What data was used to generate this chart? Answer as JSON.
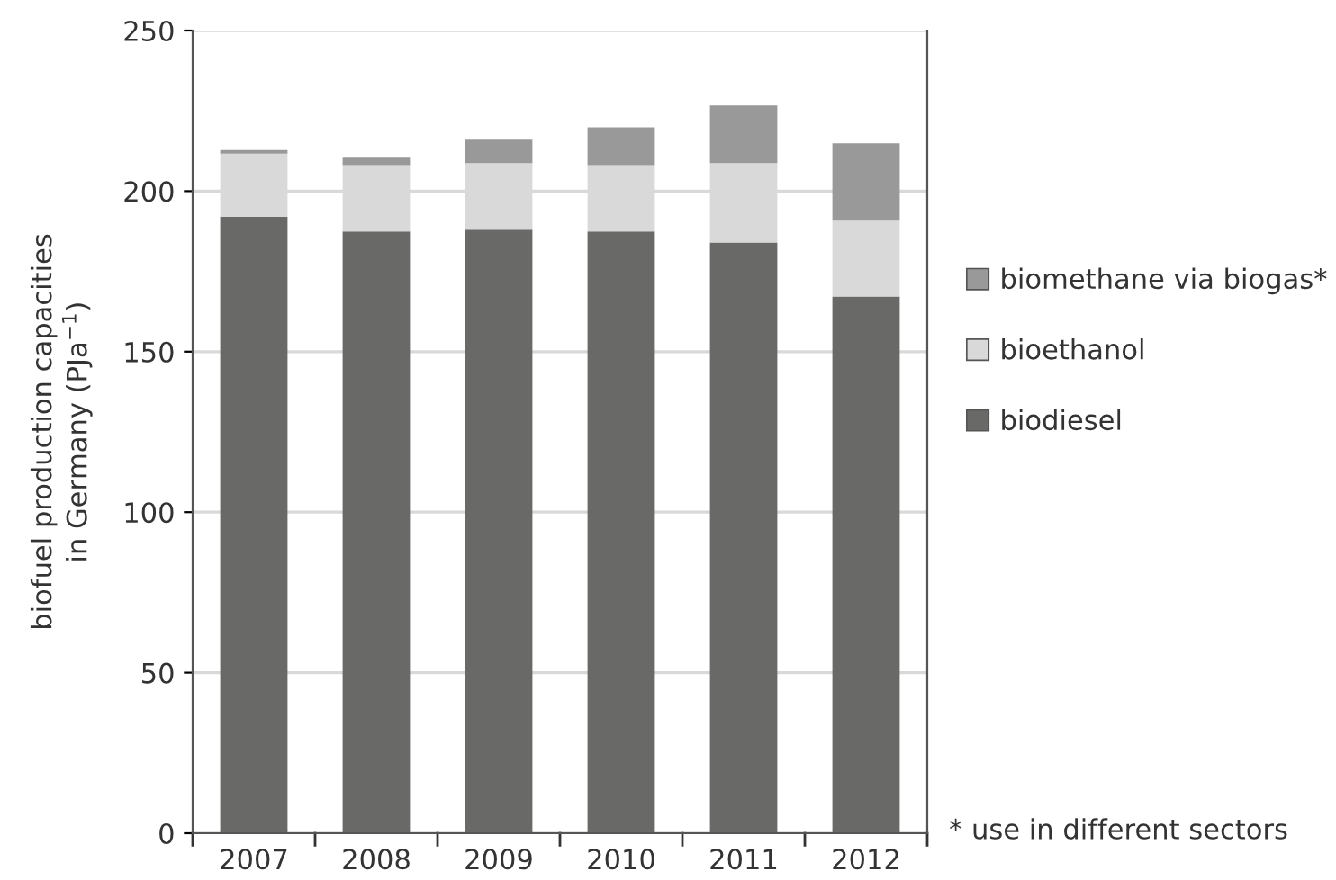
{
  "chart_data": {
    "type": "bar",
    "stacked": true,
    "ylabel": "biofuel production capacities\nin Germany (PJa$^{−1}$)",
    "categories": [
      "2007",
      "2008",
      "2009",
      "2010",
      "2011",
      "2012"
    ],
    "series": [
      {
        "name": "biodiesel",
        "color": "#696967",
        "values": [
          192,
          187.4,
          188,
          187.4,
          184,
          167.2
        ]
      },
      {
        "name": "bioethanol",
        "color": "#d9d9d9",
        "values": [
          19.7,
          20.7,
          20.7,
          20.7,
          24.7,
          23.6
        ]
      },
      {
        "name": "biomethane via biogas*",
        "color": "#999999",
        "values": [
          1.1,
          2.3,
          7.3,
          11.8,
          18,
          24.1
        ]
      }
    ],
    "ylim": [
      0,
      250
    ],
    "yticks": [
      0,
      50,
      100,
      150,
      200,
      250
    ],
    "grid": "y",
    "legend": "right",
    "annotations": [
      "* use in different sectors"
    ]
  }
}
